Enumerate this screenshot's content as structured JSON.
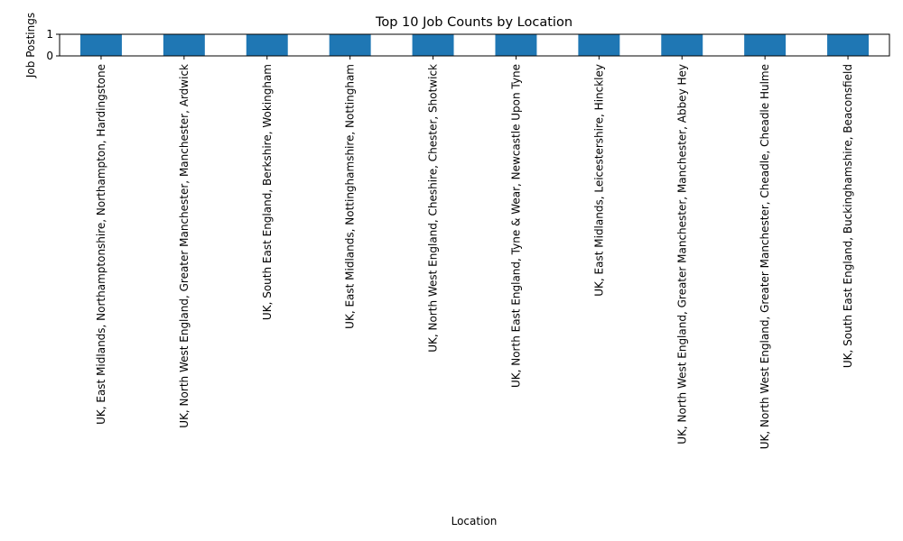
{
  "colors": {
    "bar": "#1f77b4",
    "axis": "#000000",
    "background": "#ffffff"
  },
  "chart_data": {
    "type": "bar",
    "title": "Top 10 Job Counts by Location",
    "xlabel": "Location",
    "ylabel": "Job Postings",
    "ylim": [
      0,
      1
    ],
    "yticks": [
      0,
      1
    ],
    "grid": false,
    "legend": "none",
    "categories": [
      "UK, East Midlands, Northamptonshire, Northampton, Hardingstone",
      "UK, North West England, Greater Manchester, Manchester, Ardwick",
      "UK, South East England, Berkshire, Wokingham",
      "UK, East Midlands, Nottinghamshire, Nottingham",
      "UK, North West England, Cheshire, Chester, Shotwick",
      "UK, North East England, Tyne & Wear, Newcastle Upon Tyne",
      "UK, East Midlands, Leicestershire, Hinckley",
      "UK, North West England, Greater Manchester, Manchester, Abbey Hey",
      "UK, North West England, Greater Manchester, Cheadle, Cheadle Hulme",
      "UK, South East England, Buckinghamshire, Beaconsfield"
    ],
    "values": [
      1,
      1,
      1,
      1,
      1,
      1,
      1,
      1,
      1,
      1
    ]
  }
}
